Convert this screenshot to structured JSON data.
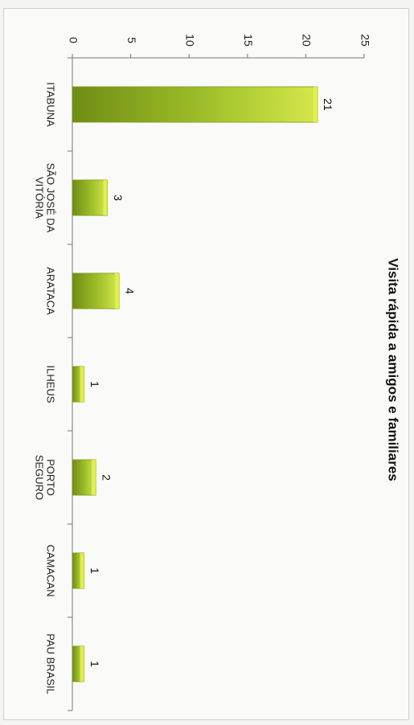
{
  "chart_data": {
    "type": "bar",
    "orientation": "horizontal",
    "title": "Visita rápida a amigos e familiares",
    "categories": [
      [
        "ITABUNA"
      ],
      [
        "SÃO JOSÉ DA",
        "VITÓRIA"
      ],
      [
        "ARATACA"
      ],
      [
        "ILHEUS"
      ],
      [
        "PORTO",
        "SEGURO"
      ],
      [
        "CAMACAN"
      ],
      [
        "PAU BRASIL"
      ]
    ],
    "values": [
      21,
      3,
      4,
      1,
      2,
      1,
      1
    ],
    "xlim": [
      0,
      25
    ],
    "ticks": [
      0,
      5,
      10,
      15,
      20,
      25
    ],
    "bar_color": "#9fc02a",
    "bar_highlight": "#e4f05a",
    "grid": false,
    "rotation": "chart rotated 90 degrees clockwise"
  }
}
